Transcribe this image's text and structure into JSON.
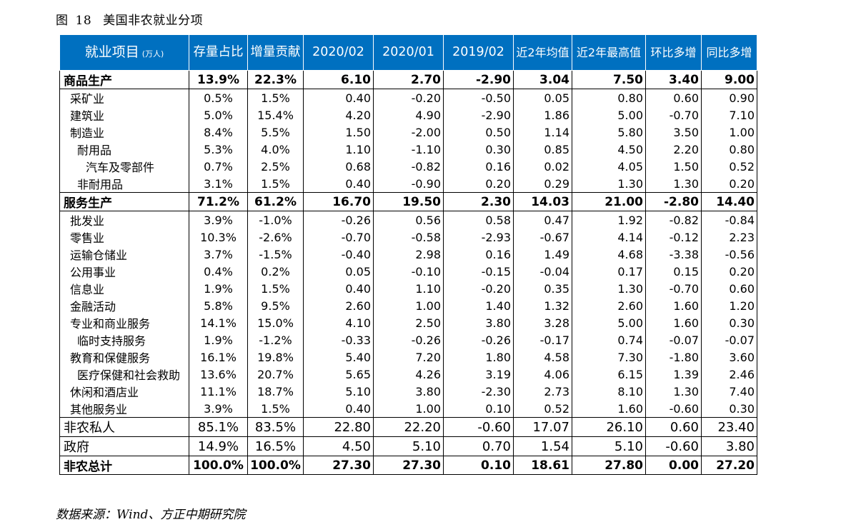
{
  "figure": {
    "label": "图",
    "number": "18",
    "title": "美国非农就业分项"
  },
  "headers": [
    "就业项目",
    "存量占比",
    "增量贡献",
    "2020/02",
    "2020/01",
    "2019/02",
    "近2年均值",
    "近2年最高值",
    "环比多增",
    "同比多增"
  ],
  "header_unit": "(万人)",
  "rows": [
    {
      "label": "商品生产",
      "cells": [
        "13.9%",
        "22.3%",
        "6.10",
        "2.70",
        "-2.90",
        "3.04",
        "7.50",
        "3.40",
        "9.00"
      ]
    },
    {
      "label": "采矿业",
      "cells": [
        "0.5%",
        "1.5%",
        "0.40",
        "-0.20",
        "-0.50",
        "0.05",
        "0.80",
        "0.60",
        "0.90"
      ]
    },
    {
      "label": "建筑业",
      "cells": [
        "5.0%",
        "15.4%",
        "4.20",
        "4.90",
        "-2.90",
        "1.86",
        "5.00",
        "-0.70",
        "7.10"
      ]
    },
    {
      "label": "制造业",
      "cells": [
        "8.4%",
        "5.5%",
        "1.50",
        "-2.00",
        "0.50",
        "1.14",
        "5.80",
        "3.50",
        "1.00"
      ]
    },
    {
      "label": "耐用品",
      "cells": [
        "5.3%",
        "4.0%",
        "1.10",
        "-1.10",
        "0.30",
        "0.85",
        "4.50",
        "2.20",
        "0.80"
      ]
    },
    {
      "label": "汽车及零部件",
      "cells": [
        "0.7%",
        "2.5%",
        "0.68",
        "-0.82",
        "0.16",
        "0.02",
        "4.05",
        "1.50",
        "0.52"
      ]
    },
    {
      "label": "非耐用品",
      "cells": [
        "3.1%",
        "1.5%",
        "0.40",
        "-0.90",
        "0.20",
        "0.29",
        "1.30",
        "1.30",
        "0.20"
      ]
    },
    {
      "label": "服务生产",
      "cells": [
        "71.2%",
        "61.2%",
        "16.70",
        "19.50",
        "2.30",
        "14.03",
        "21.00",
        "-2.80",
        "14.40"
      ]
    },
    {
      "label": "批发业",
      "cells": [
        "3.9%",
        "-1.0%",
        "-0.26",
        "0.56",
        "0.58",
        "0.47",
        "1.92",
        "-0.82",
        "-0.84"
      ]
    },
    {
      "label": "零售业",
      "cells": [
        "10.3%",
        "-2.6%",
        "-0.70",
        "-0.58",
        "-2.93",
        "-0.67",
        "4.14",
        "-0.12",
        "2.23"
      ]
    },
    {
      "label": "运输仓储业",
      "cells": [
        "3.7%",
        "-1.5%",
        "-0.40",
        "2.98",
        "0.16",
        "1.49",
        "4.68",
        "-3.38",
        "-0.56"
      ]
    },
    {
      "label": "公用事业",
      "cells": [
        "0.4%",
        "0.2%",
        "0.05",
        "-0.10",
        "-0.15",
        "-0.04",
        "0.17",
        "0.15",
        "0.20"
      ]
    },
    {
      "label": "信息业",
      "cells": [
        "1.9%",
        "1.5%",
        "0.40",
        "1.10",
        "-0.20",
        "0.35",
        "1.30",
        "-0.70",
        "0.60"
      ]
    },
    {
      "label": "金融活动",
      "cells": [
        "5.8%",
        "9.5%",
        "2.60",
        "1.00",
        "1.40",
        "1.32",
        "2.60",
        "1.60",
        "1.20"
      ]
    },
    {
      "label": "专业和商业服务",
      "cells": [
        "14.1%",
        "15.0%",
        "4.10",
        "2.50",
        "3.80",
        "3.28",
        "5.00",
        "1.60",
        "0.30"
      ]
    },
    {
      "label": "临时支持服务",
      "cells": [
        "1.9%",
        "-1.2%",
        "-0.33",
        "-0.26",
        "-0.26",
        "-0.17",
        "0.74",
        "-0.07",
        "-0.07"
      ]
    },
    {
      "label": "教育和保健服务",
      "cells": [
        "16.1%",
        "19.8%",
        "5.40",
        "7.20",
        "1.80",
        "4.58",
        "7.30",
        "-1.80",
        "3.60"
      ]
    },
    {
      "label": "医疗保健和社会救助",
      "cells": [
        "13.6%",
        "20.7%",
        "5.65",
        "4.26",
        "3.19",
        "4.06",
        "6.15",
        "1.39",
        "2.46"
      ]
    },
    {
      "label": "休闲和酒店业",
      "cells": [
        "11.1%",
        "18.7%",
        "5.10",
        "3.80",
        "-2.30",
        "2.73",
        "8.10",
        "1.30",
        "7.40"
      ]
    },
    {
      "label": "其他服务业",
      "cells": [
        "3.9%",
        "1.5%",
        "0.40",
        "1.00",
        "0.10",
        "0.52",
        "1.60",
        "-0.60",
        "0.30"
      ]
    },
    {
      "label": "非农私人",
      "cells": [
        "85.1%",
        "83.5%",
        "22.80",
        "22.20",
        "-0.60",
        "17.07",
        "26.10",
        "0.60",
        "23.40"
      ]
    },
    {
      "label": "政府",
      "cells": [
        "14.9%",
        "16.5%",
        "4.50",
        "5.10",
        "0.70",
        "1.54",
        "5.10",
        "-0.60",
        "3.80"
      ]
    },
    {
      "label": "非农总计",
      "cells": [
        "100.0%",
        "100.0%",
        "27.30",
        "27.30",
        "0.10",
        "18.61",
        "27.80",
        "0.00",
        "27.20"
      ]
    }
  ],
  "source": "数据来源：Wind、方正中期研究院"
}
